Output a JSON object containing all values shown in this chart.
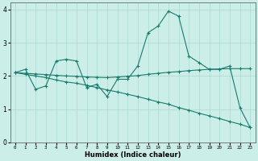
{
  "xlabel": "Humidex (Indice chaleur)",
  "xlim": [
    -0.5,
    23.5
  ],
  "ylim": [
    0,
    4.2
  ],
  "yticks": [
    0,
    1,
    2,
    3,
    4
  ],
  "xticks": [
    0,
    1,
    2,
    3,
    4,
    5,
    6,
    7,
    8,
    9,
    10,
    11,
    12,
    13,
    14,
    15,
    16,
    17,
    18,
    19,
    20,
    21,
    22,
    23
  ],
  "bg_color": "#cceee8",
  "grid_color": "#aad8d0",
  "line_color": "#1a7a6e",
  "figsize": [
    3.2,
    2.0
  ],
  "dpi": 100,
  "line1_x": [
    0,
    1,
    2,
    3,
    4,
    5,
    6,
    7,
    8,
    9,
    10,
    11,
    12,
    13,
    14,
    15,
    16,
    17,
    18,
    19,
    20,
    21,
    22,
    23
  ],
  "line1_y": [
    2.1,
    2.2,
    1.6,
    1.7,
    2.45,
    2.5,
    2.45,
    1.65,
    1.75,
    1.38,
    1.9,
    1.9,
    2.3,
    3.3,
    3.5,
    3.95,
    3.8,
    2.6,
    2.4,
    2.2,
    2.2,
    2.3,
    1.05,
    0.45
  ],
  "line2_x": [
    0,
    1,
    2,
    3,
    4,
    5,
    6,
    7,
    8,
    9,
    10,
    11,
    12,
    13,
    14,
    15,
    16,
    17,
    18,
    19,
    20,
    21,
    22,
    23
  ],
  "line2_y": [
    2.1,
    2.08,
    2.06,
    2.04,
    2.02,
    2.0,
    1.99,
    1.97,
    1.96,
    1.95,
    1.97,
    1.99,
    2.01,
    2.05,
    2.08,
    2.11,
    2.13,
    2.16,
    2.18,
    2.2,
    2.21,
    2.22,
    2.22,
    2.22
  ],
  "line3_x": [
    0,
    1,
    2,
    3,
    4,
    5,
    6,
    7,
    8,
    9,
    10,
    11,
    12,
    13,
    14,
    15,
    16,
    17,
    18,
    19,
    20,
    21,
    22,
    23
  ],
  "line3_y": [
    2.1,
    2.05,
    2.0,
    1.95,
    1.88,
    1.82,
    1.78,
    1.72,
    1.65,
    1.58,
    1.52,
    1.45,
    1.38,
    1.3,
    1.22,
    1.15,
    1.05,
    0.97,
    0.88,
    0.8,
    0.72,
    0.63,
    0.55,
    0.45
  ]
}
